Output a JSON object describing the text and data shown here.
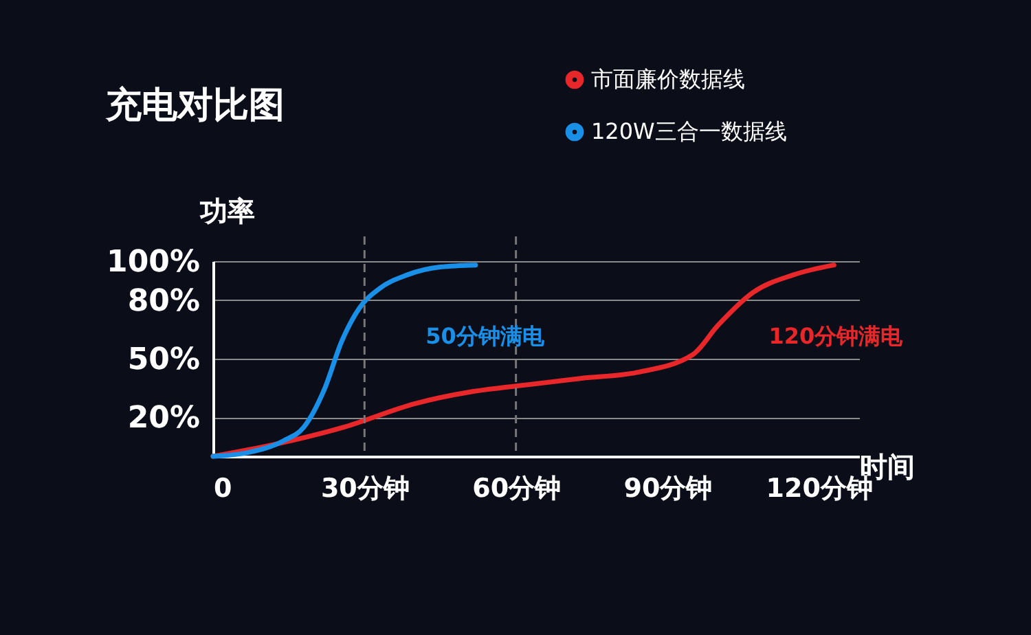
{
  "chart_data": {
    "type": "line",
    "title": "充电对比图",
    "xlabel": "时间",
    "ylabel": "功率",
    "xlim": [
      0,
      128
    ],
    "ylim": [
      0,
      100
    ],
    "xticks": [
      0,
      {
        "value": 30,
        "label": "30分钟"
      },
      {
        "value": 60,
        "label": "60分钟"
      },
      {
        "value": 90,
        "label": "90分钟"
      },
      {
        "value": 120,
        "label": "120分钟"
      }
    ],
    "yticks": [
      {
        "value": 20,
        "label": "20%"
      },
      {
        "value": 50,
        "label": "50%"
      },
      {
        "value": 80,
        "label": "80%"
      },
      {
        "value": 100,
        "label": "100%"
      }
    ],
    "grid": "y",
    "legend": "top right",
    "line_style": "solid",
    "series": [
      {
        "name": "市面廉价数据线",
        "color": "#e8272a",
        "x": [
          0,
          12,
          26,
          40,
          51,
          60,
          73,
          84,
          95,
          100,
          107,
          115,
          123
        ],
        "values": [
          0,
          6,
          15,
          27,
          33,
          36,
          40,
          43,
          52,
          67,
          84,
          93,
          98
        ]
      },
      {
        "name": "120W三合一数据线",
        "color": "#1a8fe8",
        "x": [
          0,
          7,
          14,
          18,
          22,
          25.5,
          29,
          33,
          38.5,
          45,
          52
        ],
        "values": [
          0,
          2,
          8,
          15,
          34,
          59,
          76,
          86,
          93,
          97,
          98
        ]
      }
    ],
    "ref_lines": [
      {
        "axis": "x",
        "value": 30,
        "color": "#777777",
        "line_style": "dashed"
      },
      {
        "axis": "x",
        "value": 60,
        "color": "#777777",
        "line_style": "dashed"
      }
    ],
    "annotations": [
      {
        "text": "120分钟满电",
        "x": 123,
        "y": 98
      },
      {
        "text": "50分钟满电",
        "x": 52,
        "y": 98
      }
    ]
  }
}
